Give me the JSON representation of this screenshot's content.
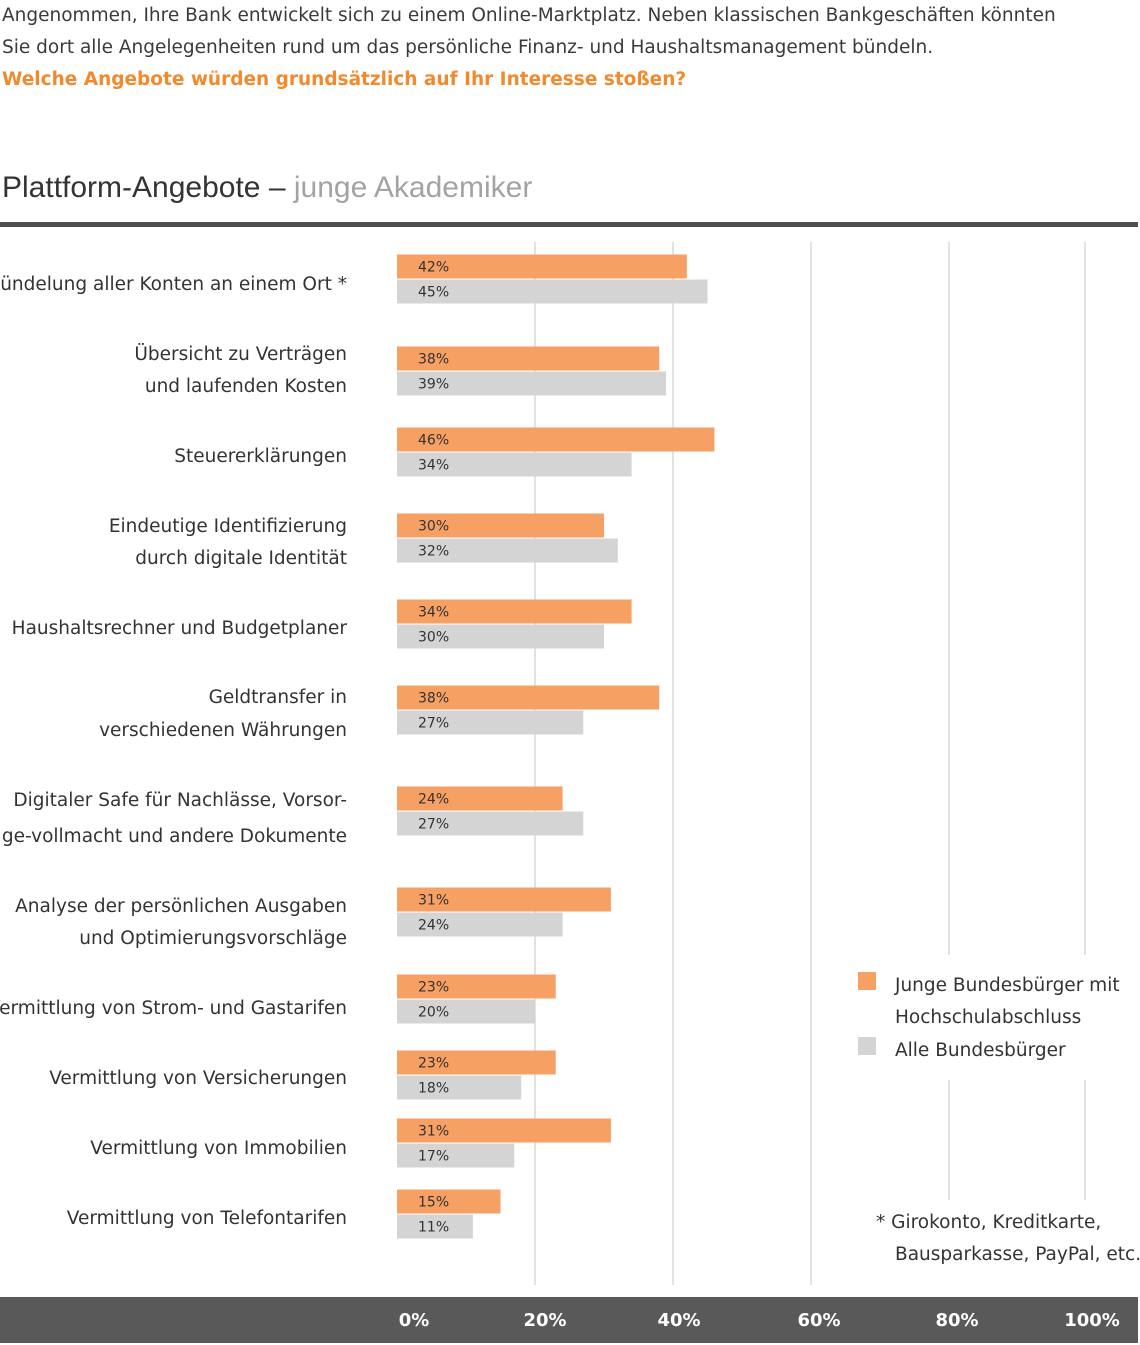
{
  "intro": {
    "line1": "Angenommen, Ihre Bank entwickelt sich zu einem Online-Marktplatz. Neben klassischen Bankgeschäften könnten",
    "line2": "Sie dort alle Angelegenheiten rund um das persönliche Finanz- und Haushaltsmanagement bündeln.",
    "question": "Welche Angebote würden grundsätzlich auf Ihr Interesse stoßen?"
  },
  "title_main": "Plattform-Angebote",
  "title_dash": " – ",
  "title_sub": "junge Akademiker",
  "colors": {
    "orange": "#f7a064",
    "gray": "#d4d4d4",
    "gridline": "#d9d9d9",
    "axisbar": "#595959",
    "question": "#f08a2c"
  },
  "footnote": {
    "line1": "* Girokonto, Kreditkarte,",
    "line2": "Bausparkasse, PayPal, etc."
  },
  "chart_data": {
    "type": "bar",
    "orientation": "horizontal",
    "categories": [
      [
        "Bündelung aller Konten an einem Ort *"
      ],
      [
        "Übersicht zu Verträgen",
        "und laufenden Kosten"
      ],
      [
        "Steuererklärungen"
      ],
      [
        "Eindeutige Identifizierung",
        "durch digitale Identität"
      ],
      [
        "Haushaltsrechner und Budgetplaner"
      ],
      [
        "Geldtransfer in",
        "verschiedenen Währungen"
      ],
      [
        "Digitaler Safe für Nachlässe, Vorsor-",
        "ge-vollmacht und andere Dokumente"
      ],
      [
        "Analyse der persönlichen Ausgaben",
        "und Optimierungsvorschläge"
      ],
      [
        "Vermittlung von Strom- und Gastarifen"
      ],
      [
        "Vermittlung von Versicherungen"
      ],
      [
        "Vermittlung von Immobilien"
      ],
      [
        "Vermittlung von Telefontarifen"
      ]
    ],
    "series": [
      {
        "name": "Junge Bundesbürger mit Hochschulabschluss",
        "legend_lines": [
          "Junge Bundesbürger mit",
          "Hochschulabschluss"
        ],
        "color": "#f7a064",
        "values": [
          42,
          38,
          46,
          30,
          34,
          38,
          24,
          31,
          23,
          23,
          31,
          15
        ]
      },
      {
        "name": "Alle Bundesbürger",
        "legend_lines": [
          "Alle Bundesbürger"
        ],
        "color": "#d4d4d4",
        "values": [
          45,
          39,
          34,
          32,
          30,
          27,
          27,
          24,
          20,
          18,
          17,
          11
        ]
      }
    ],
    "value_suffix": "%",
    "xlim": [
      0,
      100
    ],
    "xticks": [
      0,
      20,
      40,
      60,
      80,
      100
    ],
    "xtick_labels": [
      "0%",
      "20%",
      "40%",
      "60%",
      "80%",
      "100%"
    ],
    "grid": true,
    "legend_position": "right"
  }
}
